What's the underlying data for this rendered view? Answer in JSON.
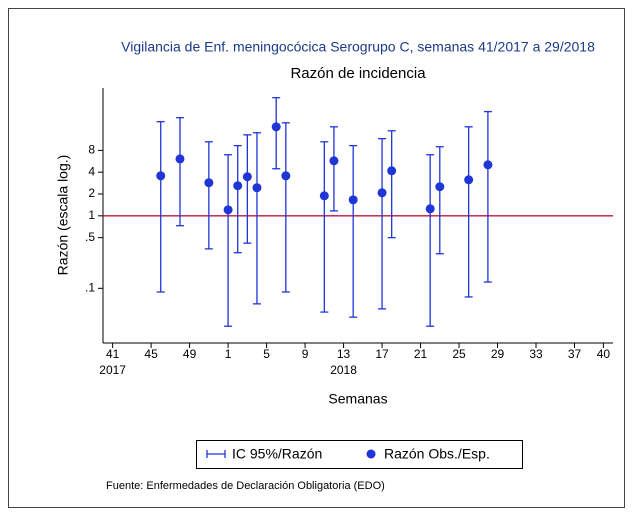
{
  "chart_data": {
    "type": "errorbar-scatter",
    "title": "Vigilancia de Enf. meningocócica Serogrupo C, semanas 41/2017 a 29/2018",
    "subtitle": "Razón de incidencia",
    "x_label": "Semanas",
    "y_label": "Razón (escala log.)",
    "source": "Fuente: Enfermedades de Declaración Obligatoria (EDO)",
    "log_y": true,
    "reference_line": 1,
    "reference_color": "#c0143c",
    "xlim": [
      -1,
      52
    ],
    "ylim": [
      0.0176,
      58
    ],
    "xticks": [
      {
        "value": 0,
        "label": "41"
      },
      {
        "value": 4,
        "label": "45"
      },
      {
        "value": 8,
        "label": "49"
      },
      {
        "value": 12,
        "label": "1"
      },
      {
        "value": 16,
        "label": "5"
      },
      {
        "value": 20,
        "label": "9"
      },
      {
        "value": 24,
        "label": "13"
      },
      {
        "value": 28,
        "label": "17"
      },
      {
        "value": 32,
        "label": "21"
      },
      {
        "value": 36,
        "label": "25"
      },
      {
        "value": 40,
        "label": "29"
      },
      {
        "value": 44,
        "label": "33"
      },
      {
        "value": 48,
        "label": "37"
      },
      {
        "value": 51,
        "label": "40"
      }
    ],
    "year_labels": [
      {
        "value": 0,
        "label": "2017"
      },
      {
        "value": 24,
        "label": "2018"
      }
    ],
    "yticks": [
      {
        "value": 0.1,
        "label": ".1"
      },
      {
        "value": 0.5,
        "label": ".5"
      },
      1,
      2,
      4,
      8
    ],
    "interval_name": "IC 95%/Razón",
    "series": [
      {
        "name": "Razón Obs./Esp.",
        "color": "#1f35d6",
        "x": [
          5,
          7,
          10,
          12,
          13,
          14,
          15,
          17,
          18,
          22,
          23,
          25,
          28,
          29,
          33,
          34,
          37,
          39
        ],
        "values": [
          3.57,
          6.1,
          2.86,
          1.21,
          2.6,
          3.46,
          2.44,
          16.9,
          3.57,
          1.89,
          5.75,
          1.66,
          2.08,
          4.18,
          1.25,
          2.52,
          3.14,
          5.06
        ],
        "lower": [
          0.089,
          0.73,
          0.35,
          0.03,
          0.31,
          0.42,
          0.061,
          4.46,
          0.089,
          0.047,
          1.17,
          0.04,
          0.052,
          0.5,
          0.03,
          0.3,
          0.076,
          0.122
        ],
        "upper": [
          19.9,
          22.6,
          10.5,
          6.96,
          9.3,
          13.1,
          14.0,
          42.6,
          19.2,
          10.5,
          16.9,
          9.3,
          11.6,
          14.9,
          6.96,
          8.97,
          16.9,
          27.4
        ]
      }
    ]
  }
}
